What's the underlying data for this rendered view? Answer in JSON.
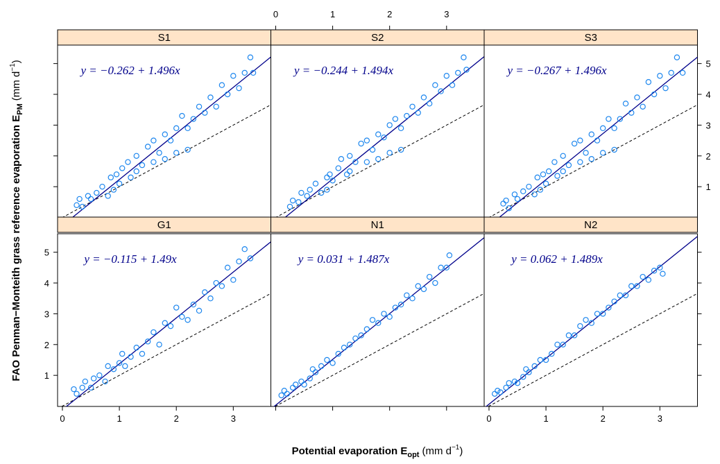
{
  "chart_data": {
    "type": "scatter",
    "xlabel": [
      "Potential evaporation E",
      "opt",
      "(mm d",
      "−1",
      ")"
    ],
    "ylabel": [
      "FAO Penman−Monteith grass reference evaporation E",
      "PM",
      "(mm d",
      "−1",
      ")"
    ],
    "xlim": [
      -0.085,
      3.66
    ],
    "ylim": [
      -0.01,
      5.6
    ],
    "xticks": [
      0,
      1,
      2,
      3
    ],
    "yticks": [
      1,
      2,
      3,
      4,
      5
    ],
    "color": "#1c86ee",
    "line_color": "#00008b",
    "strip_color": "#ffe4c8",
    "panels": [
      {
        "title": "S1",
        "equation": "y = −0.262 + 1.496x",
        "intercept": -0.262,
        "slope": 1.496,
        "x": [
          0.25,
          0.3,
          0.35,
          0.45,
          0.5,
          0.6,
          0.7,
          0.8,
          0.85,
          0.95,
          1.0,
          1.05,
          1.15,
          1.2,
          1.3,
          1.4,
          1.5,
          1.6,
          1.7,
          1.8,
          1.9,
          2.0,
          2.1,
          2.2,
          2.3,
          2.4,
          2.5,
          2.6,
          2.7,
          2.8,
          2.9,
          3.0,
          3.1,
          3.2,
          3.3,
          3.35,
          1.3,
          1.6,
          1.8,
          2.0,
          2.2,
          0.9
        ],
        "values": [
          0.4,
          0.6,
          0.35,
          0.7,
          0.6,
          0.8,
          1.0,
          0.7,
          1.3,
          1.4,
          1.1,
          1.6,
          1.8,
          1.3,
          2.0,
          1.7,
          2.3,
          2.5,
          2.1,
          2.7,
          2.5,
          2.9,
          3.3,
          2.9,
          3.2,
          3.6,
          3.4,
          3.9,
          3.6,
          4.3,
          4.0,
          4.6,
          4.2,
          4.7,
          5.2,
          4.7,
          1.5,
          1.8,
          1.9,
          2.1,
          2.2,
          0.9
        ]
      },
      {
        "title": "S2",
        "equation": "y = −0.244 + 1.494x",
        "intercept": -0.244,
        "slope": 1.494,
        "x": [
          0.25,
          0.3,
          0.4,
          0.45,
          0.55,
          0.6,
          0.7,
          0.8,
          0.9,
          0.95,
          1.0,
          1.1,
          1.15,
          1.25,
          1.3,
          1.4,
          1.5,
          1.6,
          1.7,
          1.8,
          1.9,
          2.0,
          2.1,
          2.2,
          2.3,
          2.4,
          2.5,
          2.6,
          2.7,
          2.8,
          2.9,
          3.0,
          3.1,
          3.2,
          3.3,
          3.35,
          1.3,
          1.6,
          1.8,
          2.0,
          2.2,
          0.9
        ],
        "values": [
          0.35,
          0.55,
          0.5,
          0.8,
          0.7,
          0.9,
          1.1,
          0.8,
          1.3,
          1.4,
          1.2,
          1.6,
          1.9,
          1.4,
          2.0,
          1.8,
          2.4,
          2.5,
          2.2,
          2.7,
          2.6,
          3.0,
          3.2,
          2.9,
          3.3,
          3.6,
          3.4,
          3.9,
          3.7,
          4.3,
          4.1,
          4.6,
          4.3,
          4.7,
          5.2,
          4.8,
          1.5,
          1.8,
          1.9,
          2.1,
          2.2,
          0.9
        ]
      },
      {
        "title": "S3",
        "equation": "y = −0.267 + 1.496x",
        "intercept": -0.267,
        "slope": 1.496,
        "x": [
          0.25,
          0.3,
          0.35,
          0.45,
          0.5,
          0.6,
          0.7,
          0.8,
          0.85,
          0.95,
          1.0,
          1.05,
          1.15,
          1.2,
          1.3,
          1.4,
          1.5,
          1.6,
          1.7,
          1.8,
          1.9,
          2.0,
          2.1,
          2.2,
          2.3,
          2.4,
          2.5,
          2.6,
          2.7,
          2.8,
          2.9,
          3.0,
          3.1,
          3.2,
          3.3,
          3.4,
          1.3,
          1.6,
          1.8,
          2.0,
          2.2,
          0.9
        ],
        "values": [
          0.45,
          0.55,
          0.3,
          0.75,
          0.6,
          0.85,
          1.0,
          0.75,
          1.3,
          1.4,
          1.1,
          1.5,
          1.8,
          1.35,
          2.0,
          1.7,
          2.4,
          2.5,
          2.1,
          2.7,
          2.5,
          2.9,
          3.2,
          2.9,
          3.2,
          3.7,
          3.4,
          3.9,
          3.6,
          4.4,
          4.0,
          4.6,
          4.2,
          4.7,
          5.2,
          4.7,
          1.5,
          1.8,
          1.9,
          2.1,
          2.2,
          0.9
        ]
      },
      {
        "title": "G1",
        "equation": "y = −0.115 + 1.49x",
        "intercept": -0.115,
        "slope": 1.49,
        "x": [
          0.2,
          0.25,
          0.35,
          0.4,
          0.5,
          0.55,
          0.65,
          0.75,
          0.8,
          0.9,
          1.0,
          1.05,
          1.1,
          1.2,
          1.3,
          1.4,
          1.5,
          1.6,
          1.7,
          1.8,
          1.9,
          2.0,
          2.1,
          2.2,
          2.3,
          2.4,
          2.5,
          2.6,
          2.7,
          2.8,
          2.9,
          3.0,
          3.1,
          3.2,
          3.3
        ],
        "values": [
          0.55,
          0.4,
          0.6,
          0.8,
          0.6,
          0.9,
          1.0,
          0.8,
          1.3,
          1.2,
          1.4,
          1.7,
          1.3,
          1.6,
          1.9,
          1.7,
          2.1,
          2.4,
          2.0,
          2.7,
          2.6,
          3.2,
          2.9,
          2.8,
          3.3,
          3.1,
          3.7,
          3.5,
          4.0,
          3.9,
          4.5,
          4.1,
          4.7,
          5.1,
          4.8
        ]
      },
      {
        "title": "N1",
        "equation": "y = 0.031 + 1.487x",
        "intercept": 0.031,
        "slope": 1.487,
        "x": [
          0.1,
          0.15,
          0.2,
          0.3,
          0.35,
          0.45,
          0.5,
          0.6,
          0.65,
          0.7,
          0.8,
          0.9,
          1.0,
          1.1,
          1.2,
          1.3,
          1.4,
          1.5,
          1.6,
          1.7,
          1.8,
          1.9,
          2.0,
          2.1,
          2.2,
          2.3,
          2.4,
          2.5,
          2.6,
          2.7,
          2.8,
          2.9,
          3.0,
          3.05
        ],
        "values": [
          0.35,
          0.5,
          0.4,
          0.6,
          0.7,
          0.8,
          0.7,
          0.9,
          1.2,
          1.1,
          1.3,
          1.5,
          1.4,
          1.7,
          1.9,
          2.0,
          2.2,
          2.3,
          2.5,
          2.8,
          2.7,
          3.0,
          2.9,
          3.2,
          3.3,
          3.6,
          3.5,
          3.9,
          3.8,
          4.2,
          4.0,
          4.5,
          4.5,
          4.9
        ]
      },
      {
        "title": "N2",
        "equation": "y = 0.062 + 1.489x",
        "intercept": 0.062,
        "slope": 1.489,
        "x": [
          0.1,
          0.15,
          0.2,
          0.3,
          0.35,
          0.45,
          0.5,
          0.6,
          0.65,
          0.7,
          0.8,
          0.9,
          1.0,
          1.1,
          1.2,
          1.3,
          1.4,
          1.5,
          1.6,
          1.7,
          1.8,
          1.9,
          2.0,
          2.1,
          2.2,
          2.3,
          2.4,
          2.5,
          2.6,
          2.7,
          2.8,
          2.9,
          3.0,
          3.05
        ],
        "values": [
          0.4,
          0.5,
          0.45,
          0.6,
          0.75,
          0.8,
          0.75,
          0.95,
          1.2,
          1.1,
          1.3,
          1.5,
          1.5,
          1.7,
          2.0,
          2.0,
          2.3,
          2.3,
          2.6,
          2.8,
          2.7,
          3.0,
          3.0,
          3.2,
          3.4,
          3.6,
          3.6,
          3.9,
          3.9,
          4.2,
          4.1,
          4.4,
          4.5,
          4.3
        ]
      }
    ]
  }
}
